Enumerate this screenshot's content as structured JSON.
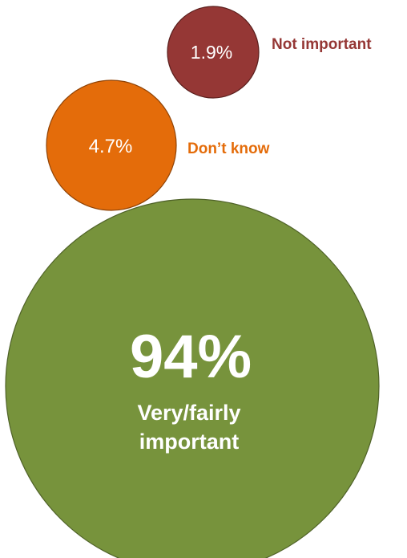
{
  "chart_data": {
    "type": "bubble",
    "title": "",
    "series": [
      {
        "key": "not-important",
        "value": 1.9,
        "value_label": "1.9%",
        "label": "Not important",
        "color": "#953735",
        "label_color": "#953735"
      },
      {
        "key": "dont-know",
        "value": 4.7,
        "value_label": "4.7%",
        "label": "Don’t know",
        "color": "#e46c0a",
        "label_color": "#e46c0a"
      },
      {
        "key": "very-fairly-important",
        "value": 94,
        "value_label": "94%",
        "label": "Very/fairly important",
        "label_lines": [
          "Very/fairly",
          "important"
        ],
        "color": "#77933c",
        "label_color": "#ffffff"
      }
    ]
  }
}
